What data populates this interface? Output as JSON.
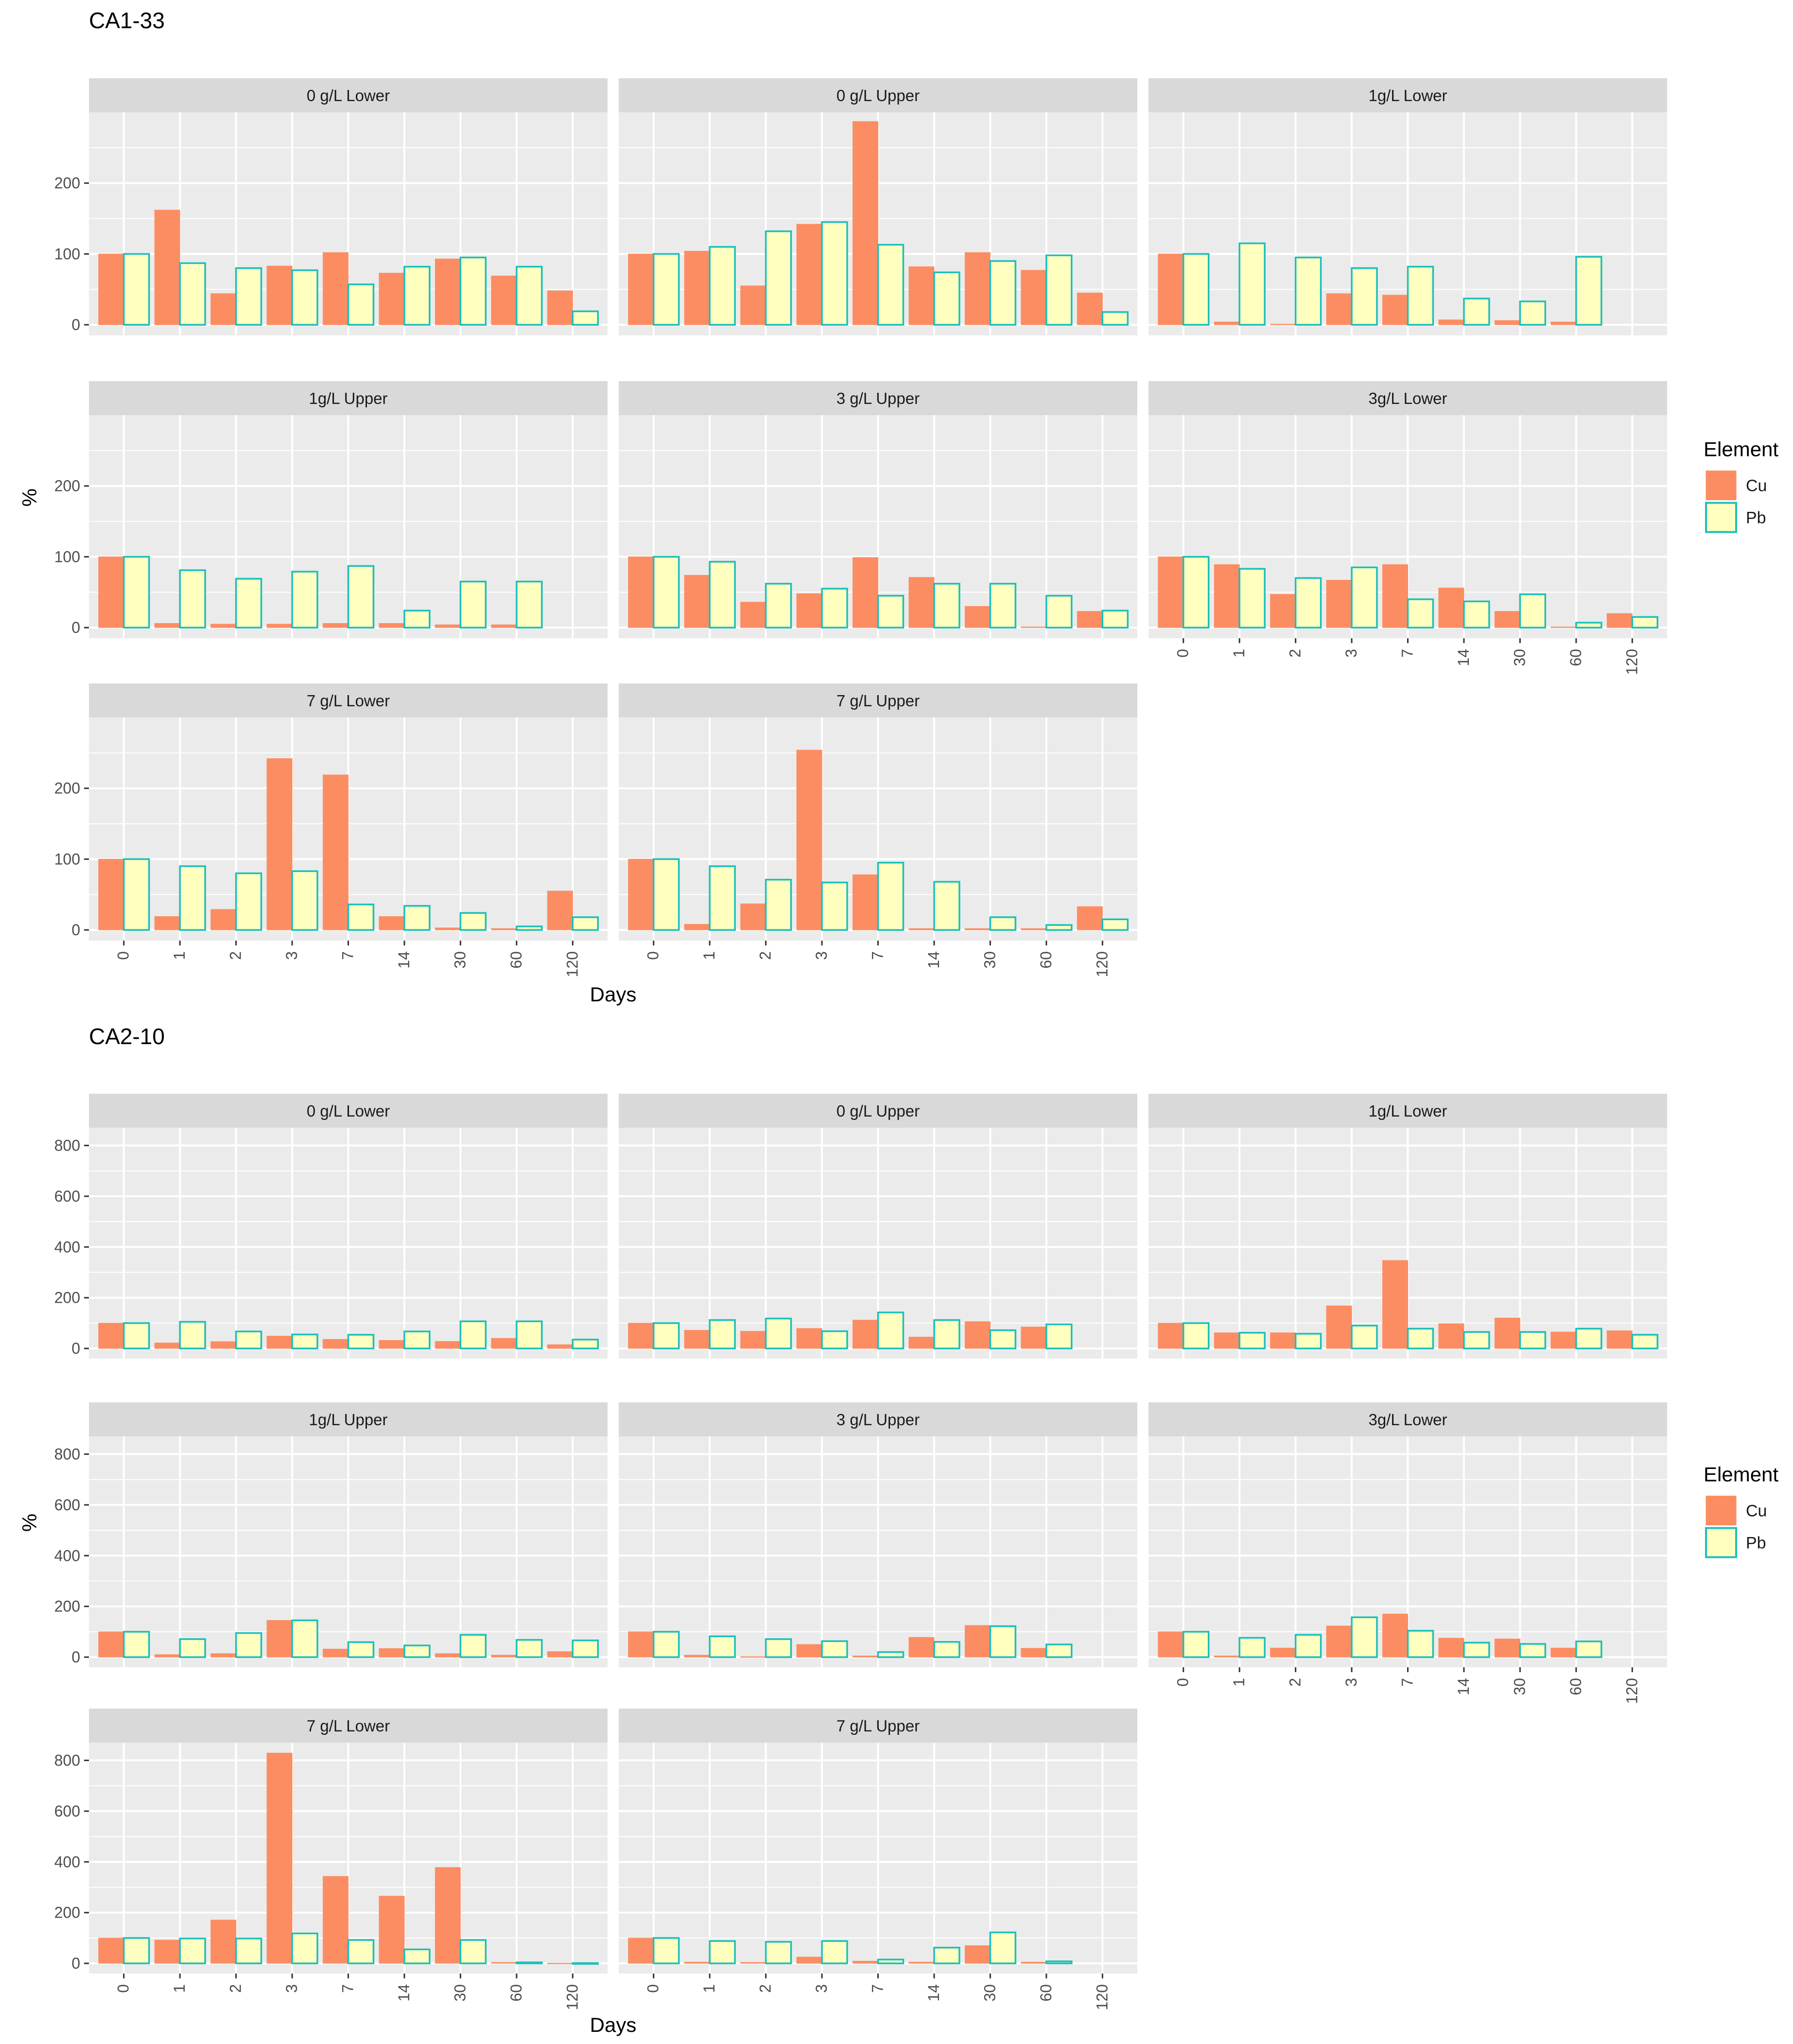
{
  "colors": {
    "cu_fill": "#fc8d62",
    "pb_fill": "#ffffc0",
    "pb_stroke": "#1ac0bb",
    "panel_bg": "#ebebeb",
    "strip_bg": "#d9d9d9",
    "grid": "#ffffff",
    "axis_text": "#4d4d4d"
  },
  "legend": {
    "title": "Element",
    "items": [
      {
        "name": "Cu",
        "fill_key": "cu_fill"
      },
      {
        "name": "Pb",
        "fill_key": "pb_fill"
      }
    ]
  },
  "chart_data": [
    {
      "type": "bar",
      "title": "CA1-33",
      "xlabel": "Days",
      "ylabel": "%",
      "ylim": [
        -15,
        300
      ],
      "yticks": [
        0,
        100,
        200
      ],
      "categories": [
        "0",
        "1",
        "2",
        "3",
        "7",
        "14",
        "30",
        "60",
        "120"
      ],
      "panels": [
        {
          "label": "0 g/L Lower",
          "series": [
            {
              "name": "Cu",
              "values": [
                100,
                162,
                44,
                83,
                102,
                73,
                93,
                69,
                48
              ]
            },
            {
              "name": "Pb",
              "values": [
                100,
                87,
                80,
                77,
                57,
                82,
                95,
                82,
                19
              ]
            }
          ]
        },
        {
          "label": "0 g/L Upper",
          "series": [
            {
              "name": "Cu",
              "values": [
                100,
                104,
                55,
                142,
                287,
                82,
                102,
                77,
                45
              ]
            },
            {
              "name": "Pb",
              "values": [
                100,
                110,
                132,
                145,
                113,
                74,
                90,
                98,
                18
              ]
            }
          ]
        },
        {
          "label": "1g/L Lower",
          "series": [
            {
              "name": "Cu",
              "values": [
                100,
                4,
                1,
                44,
                42,
                7,
                6,
                4,
                null
              ]
            },
            {
              "name": "Pb",
              "values": [
                100,
                115,
                95,
                80,
                82,
                37,
                33,
                96,
                null
              ]
            }
          ]
        },
        {
          "label": "1g/L Upper",
          "series": [
            {
              "name": "Cu",
              "values": [
                100,
                6,
                5,
                5,
                6,
                6,
                4,
                4,
                null
              ]
            },
            {
              "name": "Pb",
              "values": [
                100,
                81,
                69,
                79,
                87,
                24,
                65,
                65,
                null
              ]
            }
          ]
        },
        {
          "label": "3 g/L Upper",
          "series": [
            {
              "name": "Cu",
              "values": [
                100,
                74,
                36,
                48,
                99,
                71,
                30,
                1,
                23
              ]
            },
            {
              "name": "Pb",
              "values": [
                100,
                93,
                62,
                55,
                45,
                62,
                62,
                45,
                24
              ]
            }
          ]
        },
        {
          "label": "3g/L Lower",
          "series": [
            {
              "name": "Cu",
              "values": [
                100,
                89,
                47,
                67,
                89,
                56,
                23,
                1,
                20
              ]
            },
            {
              "name": "Pb",
              "values": [
                100,
                83,
                70,
                85,
                40,
                37,
                47,
                7,
                15
              ]
            }
          ]
        },
        {
          "label": "7 g/L Lower",
          "series": [
            {
              "name": "Cu",
              "values": [
                100,
                19,
                29,
                242,
                219,
                19,
                3,
                2,
                55
              ]
            },
            {
              "name": "Pb",
              "values": [
                100,
                90,
                80,
                83,
                36,
                34,
                24,
                5,
                18
              ]
            }
          ]
        },
        {
          "label": "7 g/L Upper",
          "series": [
            {
              "name": "Cu",
              "values": [
                100,
                8,
                37,
                254,
                78,
                2,
                2,
                2,
                33
              ]
            },
            {
              "name": "Pb",
              "values": [
                100,
                90,
                71,
                67,
                95,
                68,
                18,
                7,
                15
              ]
            }
          ]
        }
      ]
    },
    {
      "type": "bar",
      "title": "CA2-10",
      "xlabel": "Days",
      "ylabel": "%",
      "ylim": [
        -40,
        870
      ],
      "yticks": [
        0,
        200,
        400,
        600,
        800
      ],
      "categories": [
        "0",
        "1",
        "2",
        "3",
        "7",
        "14",
        "30",
        "60",
        "120"
      ],
      "panels": [
        {
          "label": "0 g/L Lower",
          "series": [
            {
              "name": "Cu",
              "values": [
                100,
                22,
                27,
                49,
                36,
                32,
                28,
                40,
                15
              ]
            },
            {
              "name": "Pb",
              "values": [
                100,
                105,
                67,
                55,
                54,
                67,
                107,
                107,
                35
              ]
            }
          ]
        },
        {
          "label": "0 g/L Upper",
          "series": [
            {
              "name": "Cu",
              "values": [
                100,
                72,
                68,
                79,
                112,
                45,
                106,
                85,
                null
              ]
            },
            {
              "name": "Pb",
              "values": [
                100,
                112,
                118,
                68,
                142,
                112,
                72,
                95,
                null
              ]
            }
          ]
        },
        {
          "label": "1g/L Lower",
          "series": [
            {
              "name": "Cu",
              "values": [
                100,
                62,
                62,
                168,
                347,
                98,
                120,
                65,
                70
              ]
            },
            {
              "name": "Pb",
              "values": [
                100,
                62,
                58,
                90,
                78,
                65,
                65,
                78,
                54
              ]
            }
          ]
        },
        {
          "label": "1g/L Upper",
          "series": [
            {
              "name": "Cu",
              "values": [
                100,
                10,
                14,
                145,
                32,
                34,
                14,
                8,
                22
              ]
            },
            {
              "name": "Pb",
              "values": [
                100,
                71,
                95,
                145,
                59,
                46,
                88,
                68,
                66
              ]
            }
          ]
        },
        {
          "label": "3 g/L Upper",
          "series": [
            {
              "name": "Cu",
              "values": [
                100,
                8,
                2,
                50,
                5,
                78,
                125,
                35,
                null
              ]
            },
            {
              "name": "Pb",
              "values": [
                100,
                82,
                71,
                63,
                20,
                60,
                122,
                50,
                null
              ]
            }
          ]
        },
        {
          "label": "3g/L Lower",
          "series": [
            {
              "name": "Cu",
              "values": [
                100,
                5,
                36,
                123,
                170,
                75,
                72,
                36,
                null
              ]
            },
            {
              "name": "Pb",
              "values": [
                100,
                76,
                88,
                157,
                104,
                57,
                52,
                62,
                null
              ]
            }
          ]
        },
        {
          "label": "7 g/L Lower",
          "series": [
            {
              "name": "Cu",
              "values": [
                100,
                92,
                171,
                829,
                343,
                265,
                378,
                4,
                1
              ]
            },
            {
              "name": "Pb",
              "values": [
                100,
                98,
                98,
                118,
                92,
                55,
                92,
                4,
                1
              ]
            }
          ]
        },
        {
          "label": "7 g/L Upper",
          "series": [
            {
              "name": "Cu",
              "values": [
                100,
                5,
                4,
                25,
                9,
                5,
                70,
                5,
                null
              ]
            },
            {
              "name": "Pb",
              "values": [
                100,
                88,
                85,
                88,
                15,
                62,
                122,
                8,
                null
              ]
            }
          ]
        }
      ]
    }
  ]
}
